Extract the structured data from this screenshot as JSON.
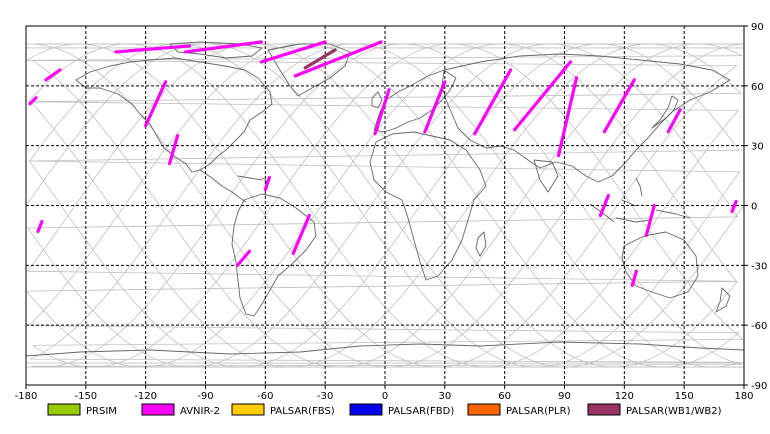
{
  "map": {
    "lon_ticks": [
      "-180",
      "-150",
      "-120",
      "-90",
      "-60",
      "-30",
      "0",
      "30",
      "60",
      "90",
      "120",
      "150",
      "180"
    ],
    "lat_ticks": [
      "90",
      "60",
      "30",
      "0",
      "-30",
      "-60",
      "-90"
    ],
    "lon_range": [
      -180,
      180
    ],
    "lat_range": [
      -90,
      90
    ],
    "grid": "dashed",
    "legend_position": "bottom",
    "colors": {
      "PRSIM": "#99cc00",
      "AVNIR-2": "#ff00ff",
      "PALSAR(FBS)": "#ffcc00",
      "PALSAR(FBD)": "#0000ee",
      "PALSAR(PLR)": "#ff6600",
      "PALSAR(WB1/WB2)": "#993366",
      "orbit_track": "#c0c0c0",
      "coastline": "#666666"
    }
  },
  "legend": [
    {
      "label": "PRSIM",
      "color": "#99cc00"
    },
    {
      "label": "AVNIR-2",
      "color": "#ff00ff"
    },
    {
      "label": "PALSAR(FBS)",
      "color": "#ffcc00"
    },
    {
      "label": "PALSAR(FBD)",
      "color": "#0000ee"
    },
    {
      "label": "PALSAR(PLR)",
      "color": "#ff6600"
    },
    {
      "label": "PALSAR(WB1/WB2)",
      "color": "#993366"
    }
  ],
  "acquisitions": [
    {
      "sensor": "AVNIR-2",
      "lon": [
        -178,
        -175
      ],
      "lat": [
        51,
        54
      ]
    },
    {
      "sensor": "AVNIR-2",
      "lon": [
        -170,
        -163
      ],
      "lat": [
        63,
        68
      ]
    },
    {
      "sensor": "AVNIR-2",
      "lon": [
        -172,
        -174
      ],
      "lat": [
        -8,
        -13
      ]
    },
    {
      "sensor": "AVNIR-2",
      "lon": [
        -110,
        -120
      ],
      "lat": [
        62,
        40
      ]
    },
    {
      "sensor": "AVNIR-2",
      "lon": [
        -104,
        -108
      ],
      "lat": [
        35,
        21
      ]
    },
    {
      "sensor": "AVNIR-2",
      "lon": [
        -98,
        -135
      ],
      "lat": [
        80,
        77
      ]
    },
    {
      "sensor": "AVNIR-2",
      "lon": [
        -62,
        -100
      ],
      "lat": [
        82,
        77
      ]
    },
    {
      "sensor": "AVNIR-2",
      "lon": [
        -30,
        -62
      ],
      "lat": [
        82,
        72
      ]
    },
    {
      "sensor": "AVNIR-2",
      "lon": [
        -2,
        -45
      ],
      "lat": [
        82,
        65
      ]
    },
    {
      "sensor": "PALSAR(WB1/WB2)",
      "lon": [
        -25,
        -40
      ],
      "lat": [
        78,
        69
      ]
    },
    {
      "sensor": "AVNIR-2",
      "lon": [
        -38,
        -46
      ],
      "lat": [
        -5,
        -24
      ]
    },
    {
      "sensor": "AVNIR-2",
      "lon": [
        -68,
        -74
      ],
      "lat": [
        -23,
        -30
      ]
    },
    {
      "sensor": "AVNIR-2",
      "lon": [
        -58,
        -60
      ],
      "lat": [
        14,
        8
      ]
    },
    {
      "sensor": "AVNIR-2",
      "lon": [
        2,
        -5
      ],
      "lat": [
        58,
        36
      ]
    },
    {
      "sensor": "AVNIR-2",
      "lon": [
        30,
        20
      ],
      "lat": [
        62,
        37
      ]
    },
    {
      "sensor": "AVNIR-2",
      "lon": [
        63,
        45
      ],
      "lat": [
        68,
        36
      ]
    },
    {
      "sensor": "AVNIR-2",
      "lon": [
        93,
        65
      ],
      "lat": [
        72,
        38
      ]
    },
    {
      "sensor": "AVNIR-2",
      "lon": [
        96,
        87
      ],
      "lat": [
        64,
        25
      ]
    },
    {
      "sensor": "AVNIR-2",
      "lon": [
        125,
        110
      ],
      "lat": [
        63,
        37
      ]
    },
    {
      "sensor": "AVNIR-2",
      "lon": [
        148,
        142
      ],
      "lat": [
        48,
        37
      ]
    },
    {
      "sensor": "AVNIR-2",
      "lon": [
        112,
        108
      ],
      "lat": [
        5,
        -5
      ]
    },
    {
      "sensor": "AVNIR-2",
      "lon": [
        135,
        131
      ],
      "lat": [
        0,
        -15
      ]
    },
    {
      "sensor": "AVNIR-2",
      "lon": [
        126,
        124
      ],
      "lat": [
        -33,
        -40
      ]
    },
    {
      "sensor": "AVNIR-2",
      "lon": [
        176,
        174
      ],
      "lat": [
        2,
        -3
      ]
    }
  ]
}
